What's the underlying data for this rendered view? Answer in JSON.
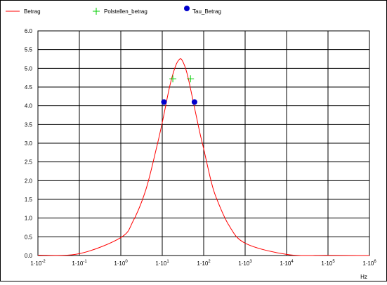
{
  "chart_data": {
    "type": "line",
    "x_scale": "log",
    "xunit": "Hz",
    "xlim": [
      0.01,
      1000000
    ],
    "ylim": [
      0,
      6
    ],
    "x_ticks": [
      {
        "value": 0.01,
        "mantissa": "1·10",
        "exp": "-2"
      },
      {
        "value": 0.1,
        "mantissa": "1·10",
        "exp": "-1"
      },
      {
        "value": 1,
        "mantissa": "1·10",
        "exp": "0"
      },
      {
        "value": 10,
        "mantissa": "1·10",
        "exp": "1"
      },
      {
        "value": 100,
        "mantissa": "1·10",
        "exp": "2"
      },
      {
        "value": 1000,
        "mantissa": "1·10",
        "exp": "3"
      },
      {
        "value": 10000,
        "mantissa": "1·10",
        "exp": "4"
      },
      {
        "value": 100000,
        "mantissa": "1·10",
        "exp": "5"
      },
      {
        "value": 1000000,
        "mantissa": "1·10",
        "exp": "6"
      }
    ],
    "y_ticks": [
      "0.0",
      "0.5",
      "1.0",
      "1.5",
      "2.0",
      "2.5",
      "3.0",
      "3.5",
      "4.0",
      "4.5",
      "5.0",
      "5.5",
      "6.0"
    ],
    "grid": true,
    "legend_position": "top",
    "series": [
      {
        "name": "Betrag",
        "kind": "line",
        "color": "#ff0000",
        "x": [
          0.01,
          0.1,
          1,
          2,
          4,
          7,
          10,
          15,
          20,
          25,
          30,
          40,
          60,
          80,
          100,
          150,
          200,
          400,
          1000,
          10000,
          100000,
          1000000
        ],
        "y": [
          0.01,
          0.05,
          0.48,
          0.93,
          1.75,
          2.8,
          3.55,
          4.5,
          5.0,
          5.22,
          5.22,
          4.85,
          3.95,
          3.3,
          2.85,
          2.0,
          1.55,
          0.82,
          0.33,
          0.03,
          0.005,
          0.0
        ]
      },
      {
        "name": "Polstellen_betrag",
        "kind": "marker-plus",
        "color": "#00cc00",
        "x": [
          18,
          48
        ],
        "y": [
          4.72,
          4.72
        ]
      },
      {
        "name": "Tau_Betrag",
        "kind": "marker-dot",
        "color": "#0000cc",
        "x": [
          11,
          60
        ],
        "y": [
          4.1,
          4.1
        ]
      }
    ]
  }
}
